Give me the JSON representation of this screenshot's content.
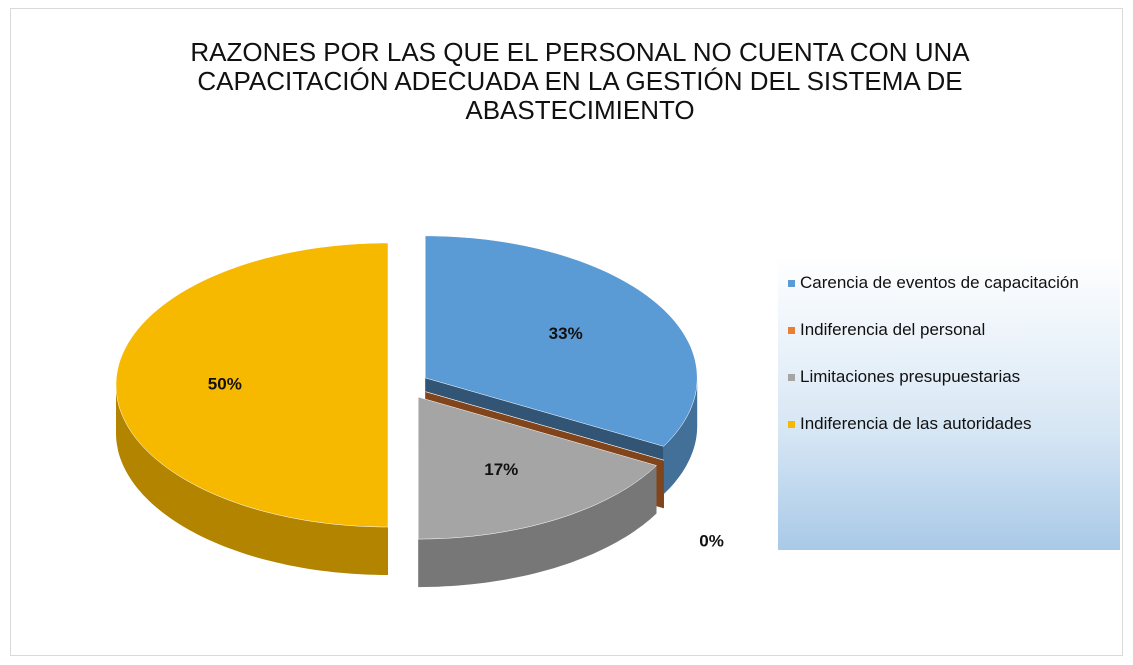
{
  "chart_data": {
    "type": "pie",
    "title": "RAZONES POR LAS QUE EL PERSONAL NO CUENTA CON UNA CAPACITACIÓN ADECUADA EN LA GESTIÓN DEL SISTEMA DE ABASTECIMIENTO",
    "categories": [
      "Carencia de eventos de capacitación",
      "Indiferencia del personal",
      "Limitaciones presupuestarias",
      "Indiferencia de las autoridades"
    ],
    "values": [
      33,
      0,
      17,
      50
    ],
    "value_labels": [
      "33%",
      "0%",
      "17%",
      "50%"
    ],
    "colors": [
      "#5b9bd5",
      "#ed7d31",
      "#a5a5a5",
      "#f7b800"
    ],
    "legend": "right"
  }
}
